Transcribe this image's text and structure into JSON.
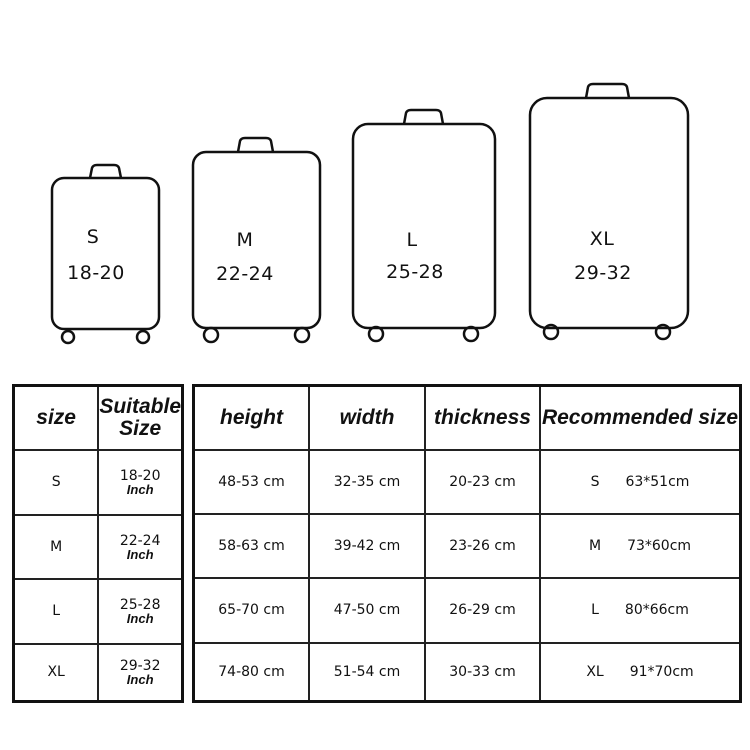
{
  "suitcases": [
    {
      "size": "S",
      "range": "18-20"
    },
    {
      "size": "M",
      "range": "22-24"
    },
    {
      "size": "L",
      "range": "25-28"
    },
    {
      "size": "XL",
      "range": "29-32"
    }
  ],
  "size_table": {
    "headers": {
      "size": "size",
      "suitable": "Suitable Size"
    },
    "rows": [
      {
        "size": "S",
        "suitable": "18-20",
        "unit": "Inch"
      },
      {
        "size": "M",
        "suitable": "22-24",
        "unit": "Inch"
      },
      {
        "size": "L",
        "suitable": "25-28",
        "unit": "Inch"
      },
      {
        "size": "XL",
        "suitable": "29-32",
        "unit": "Inch"
      }
    ]
  },
  "dimension_table": {
    "headers": [
      "height",
      "width",
      "thickness",
      "Recommended size"
    ],
    "rows": [
      {
        "height": "48-53 cm",
        "width": "32-35 cm",
        "thickness": "20-23 cm",
        "rec_size": "S",
        "rec_dims": "63*51cm"
      },
      {
        "height": "58-63 cm",
        "width": "39-42 cm",
        "thickness": "23-26 cm",
        "rec_size": "M",
        "rec_dims": "73*60cm"
      },
      {
        "height": "65-70 cm",
        "width": "47-50 cm",
        "thickness": "26-29 cm",
        "rec_size": "L",
        "rec_dims": "80*66cm"
      },
      {
        "height": "74-80 cm",
        "width": "51-54 cm",
        "thickness": "30-33 cm",
        "rec_size": "XL",
        "rec_dims": "91*70cm"
      }
    ]
  }
}
